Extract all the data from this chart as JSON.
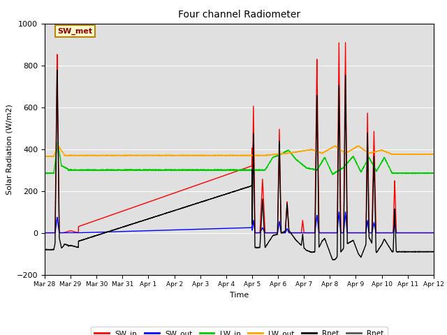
{
  "title": "Four channel Radiometer",
  "xlabel": "Time",
  "ylabel": "Solar Radiation (W/m2)",
  "ylim": [
    -200,
    1000
  ],
  "annotation_text": "SW_met",
  "annotation_color": "#8B0000",
  "annotation_bg": "#FFFACD",
  "annotation_border": "#B8860B",
  "background_color": "#E0E0E0",
  "tick_labels": [
    "Mar 28",
    "Mar 29",
    "Mar 30",
    "Mar 31",
    "Apr 1",
    "Apr 2",
    "Apr 3",
    "Apr 4",
    "Apr 5",
    "Apr 6",
    "Apr 7",
    "Apr 8",
    "Apr 9",
    "Apr 10",
    "Apr 11",
    "Apr 12"
  ],
  "series": {
    "SW_in": {
      "color": "#FF0000",
      "lw": 1.0
    },
    "SW_out": {
      "color": "#0000FF",
      "lw": 1.0
    },
    "LW_in": {
      "color": "#00CC00",
      "lw": 1.0
    },
    "LW_out": {
      "color": "#FFA500",
      "lw": 1.0
    },
    "Rnet_black": {
      "color": "#000000",
      "lw": 1.0
    },
    "Rnet_dark": {
      "color": "#555555",
      "lw": 1.0
    }
  }
}
